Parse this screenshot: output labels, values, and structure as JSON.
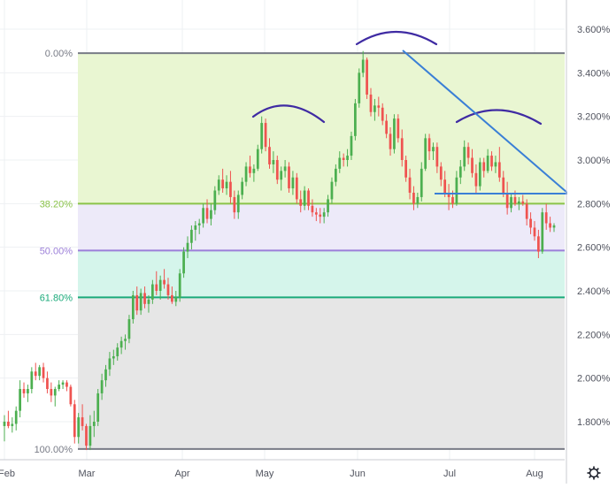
{
  "chart_data": {
    "type": "candlestick",
    "x_axis": {
      "type": "time",
      "tick_labels": [
        "Feb",
        "Mar",
        "Apr",
        "May",
        "Jun",
        "Jul",
        "Aug"
      ]
    },
    "y_axis": {
      "unit": "%",
      "range": [
        1.6,
        3.7
      ],
      "position": "right",
      "tick_labels": [
        "3.600%",
        "3.400%",
        "3.200%",
        "3.000%",
        "2.800%",
        "2.600%",
        "2.400%",
        "2.200%",
        "2.000%",
        "1.800%"
      ]
    },
    "grid": true,
    "fibonacci_retracement": {
      "levels": [
        {
          "label": "0.00%",
          "value": 3.49,
          "line_color": "#787b86",
          "label_color": "#787b86"
        },
        {
          "label": "38.20%",
          "value": 2.8,
          "line_color": "#8bc34a",
          "label_color": "#8bc34a"
        },
        {
          "label": "50.00%",
          "value": 2.585,
          "line_color": "#9c7fd9",
          "label_color": "#9c7fd9"
        },
        {
          "label": "61.80%",
          "value": 2.37,
          "line_color": "#1aaa7a",
          "label_color": "#1aaa7a"
        },
        {
          "label": "100.00%",
          "value": 1.675,
          "line_color": "#787b86",
          "label_color": "#787b86"
        }
      ],
      "zone_colors": [
        "#e8f5d0",
        "#ece9f9",
        "#d3f4ea",
        "#e5e5e5"
      ]
    },
    "candles": [
      {
        "t": "Feb 2",
        "o": 1.78,
        "h": 1.83,
        "l": 1.71,
        "c": 1.8
      },
      {
        "t": "Feb 3",
        "o": 1.8,
        "h": 1.85,
        "l": 1.77,
        "c": 1.78
      },
      {
        "t": "Feb 4",
        "o": 1.78,
        "h": 1.82,
        "l": 1.75,
        "c": 1.79
      },
      {
        "t": "Feb 5",
        "o": 1.79,
        "h": 1.87,
        "l": 1.76,
        "c": 1.85
      },
      {
        "t": "Feb 6",
        "o": 1.85,
        "h": 1.99,
        "l": 1.82,
        "c": 1.95
      },
      {
        "t": "Feb 7",
        "o": 1.95,
        "h": 1.98,
        "l": 1.91,
        "c": 1.93
      },
      {
        "t": "Feb 8",
        "o": 1.93,
        "h": 1.97,
        "l": 1.89,
        "c": 1.95
      },
      {
        "t": "Feb 9",
        "o": 1.95,
        "h": 2.05,
        "l": 1.93,
        "c": 2.03
      },
      {
        "t": "Feb 10",
        "o": 2.03,
        "h": 2.07,
        "l": 1.99,
        "c": 2.01
      },
      {
        "t": "Feb 11",
        "o": 2.01,
        "h": 2.06,
        "l": 1.99,
        "c": 2.05
      },
      {
        "t": "Feb 12",
        "o": 2.05,
        "h": 2.07,
        "l": 1.98,
        "c": 2.0
      },
      {
        "t": "Feb 13",
        "o": 2.0,
        "h": 2.03,
        "l": 1.93,
        "c": 1.95
      },
      {
        "t": "Feb 14",
        "o": 1.95,
        "h": 1.98,
        "l": 1.89,
        "c": 1.92
      },
      {
        "t": "Feb 15",
        "o": 1.92,
        "h": 1.96,
        "l": 1.87,
        "c": 1.95
      },
      {
        "t": "Feb 16",
        "o": 1.95,
        "h": 1.99,
        "l": 1.94,
        "c": 1.97
      },
      {
        "t": "Feb 17",
        "o": 1.97,
        "h": 1.99,
        "l": 1.95,
        "c": 1.98
      },
      {
        "t": "Feb 18",
        "o": 1.98,
        "h": 1.99,
        "l": 1.94,
        "c": 1.96
      },
      {
        "t": "Feb 19",
        "o": 1.96,
        "h": 1.97,
        "l": 1.87,
        "c": 1.88
      },
      {
        "t": "Feb 20",
        "o": 1.88,
        "h": 1.9,
        "l": 1.7,
        "c": 1.73
      },
      {
        "t": "Feb 21",
        "o": 1.73,
        "h": 1.84,
        "l": 1.7,
        "c": 1.82
      },
      {
        "t": "Feb 22",
        "o": 1.82,
        "h": 1.88,
        "l": 1.76,
        "c": 1.78
      },
      {
        "t": "Feb 23",
        "o": 1.78,
        "h": 1.79,
        "l": 1.67,
        "c": 1.69
      },
      {
        "t": "Feb 24",
        "o": 1.69,
        "h": 1.83,
        "l": 1.67,
        "c": 1.78
      },
      {
        "t": "Feb 25",
        "o": 1.78,
        "h": 1.85,
        "l": 1.73,
        "c": 1.8
      },
      {
        "t": "Feb 26",
        "o": 1.8,
        "h": 1.95,
        "l": 1.78,
        "c": 1.93
      },
      {
        "t": "Feb 27",
        "o": 1.93,
        "h": 2.02,
        "l": 1.9,
        "c": 1.99
      },
      {
        "t": "Feb 28",
        "o": 1.99,
        "h": 2.06,
        "l": 1.96,
        "c": 2.04
      },
      {
        "t": "Mar 1",
        "o": 2.04,
        "h": 2.12,
        "l": 2.01,
        "c": 2.09
      },
      {
        "t": "Mar 2",
        "o": 2.09,
        "h": 2.13,
        "l": 2.06,
        "c": 2.1
      },
      {
        "t": "Mar 3",
        "o": 2.1,
        "h": 2.16,
        "l": 2.08,
        "c": 2.14
      },
      {
        "t": "Mar 4",
        "o": 2.14,
        "h": 2.19,
        "l": 2.11,
        "c": 2.17
      },
      {
        "t": "Mar 5",
        "o": 2.17,
        "h": 2.2,
        "l": 2.13,
        "c": 2.18
      },
      {
        "t": "Mar 6",
        "o": 2.18,
        "h": 2.29,
        "l": 2.16,
        "c": 2.27
      },
      {
        "t": "Mar 7",
        "o": 2.27,
        "h": 2.4,
        "l": 2.25,
        "c": 2.38
      },
      {
        "t": "Mar 8",
        "o": 2.38,
        "h": 2.42,
        "l": 2.29,
        "c": 2.31
      },
      {
        "t": "Mar 9",
        "o": 2.31,
        "h": 2.41,
        "l": 2.29,
        "c": 2.39
      },
      {
        "t": "Mar 10",
        "o": 2.39,
        "h": 2.42,
        "l": 2.32,
        "c": 2.34
      },
      {
        "t": "Mar 11",
        "o": 2.34,
        "h": 2.38,
        "l": 2.3,
        "c": 2.36
      },
      {
        "t": "Mar 12",
        "o": 2.36,
        "h": 2.45,
        "l": 2.34,
        "c": 2.43
      },
      {
        "t": "Mar 13",
        "o": 2.43,
        "h": 2.49,
        "l": 2.38,
        "c": 2.4
      },
      {
        "t": "Mar 14",
        "o": 2.4,
        "h": 2.47,
        "l": 2.36,
        "c": 2.45
      },
      {
        "t": "Mar 15",
        "o": 2.45,
        "h": 2.5,
        "l": 2.41,
        "c": 2.43
      },
      {
        "t": "Mar 16",
        "o": 2.43,
        "h": 2.46,
        "l": 2.36,
        "c": 2.38
      },
      {
        "t": "Mar 17",
        "o": 2.38,
        "h": 2.42,
        "l": 2.34,
        "c": 2.35
      },
      {
        "t": "Mar 18",
        "o": 2.35,
        "h": 2.4,
        "l": 2.33,
        "c": 2.37
      },
      {
        "t": "Mar 19",
        "o": 2.37,
        "h": 2.5,
        "l": 2.35,
        "c": 2.48
      },
      {
        "t": "Mar 20",
        "o": 2.48,
        "h": 2.6,
        "l": 2.46,
        "c": 2.58
      },
      {
        "t": "Mar 21",
        "o": 2.58,
        "h": 2.65,
        "l": 2.55,
        "c": 2.62
      },
      {
        "t": "Mar 22",
        "o": 2.62,
        "h": 2.7,
        "l": 2.59,
        "c": 2.68
      },
      {
        "t": "Mar 23",
        "o": 2.68,
        "h": 2.72,
        "l": 2.63,
        "c": 2.7
      },
      {
        "t": "Mar 24",
        "o": 2.7,
        "h": 2.73,
        "l": 2.66,
        "c": 2.71
      },
      {
        "t": "Mar 25",
        "o": 2.71,
        "h": 2.8,
        "l": 2.69,
        "c": 2.78
      },
      {
        "t": "Mar 26",
        "o": 2.78,
        "h": 2.82,
        "l": 2.71,
        "c": 2.73
      },
      {
        "t": "Mar 27",
        "o": 2.73,
        "h": 2.8,
        "l": 2.7,
        "c": 2.77
      },
      {
        "t": "Mar 28",
        "o": 2.77,
        "h": 2.88,
        "l": 2.75,
        "c": 2.86
      },
      {
        "t": "Mar 29",
        "o": 2.86,
        "h": 2.93,
        "l": 2.84,
        "c": 2.91
      },
      {
        "t": "Mar 30",
        "o": 2.91,
        "h": 2.96,
        "l": 2.85,
        "c": 2.87
      },
      {
        "t": "Mar 31",
        "o": 2.87,
        "h": 2.93,
        "l": 2.84,
        "c": 2.9
      },
      {
        "t": "Apr 1",
        "o": 2.9,
        "h": 2.95,
        "l": 2.8,
        "c": 2.83
      },
      {
        "t": "Apr 2",
        "o": 2.83,
        "h": 2.86,
        "l": 2.73,
        "c": 2.76
      },
      {
        "t": "Apr 3",
        "o": 2.76,
        "h": 2.86,
        "l": 2.73,
        "c": 2.84
      },
      {
        "t": "Apr 4",
        "o": 2.84,
        "h": 2.92,
        "l": 2.82,
        "c": 2.9
      },
      {
        "t": "Apr 5",
        "o": 2.9,
        "h": 2.99,
        "l": 2.88,
        "c": 2.97
      },
      {
        "t": "Apr 6",
        "o": 2.97,
        "h": 3.02,
        "l": 2.92,
        "c": 2.94
      },
      {
        "t": "Apr 7",
        "o": 2.94,
        "h": 2.98,
        "l": 2.9,
        "c": 2.96
      },
      {
        "t": "Apr 8",
        "o": 2.96,
        "h": 3.07,
        "l": 2.95,
        "c": 3.05
      },
      {
        "t": "Apr 9",
        "o": 3.05,
        "h": 3.2,
        "l": 3.03,
        "c": 3.17
      },
      {
        "t": "Apr 10",
        "o": 3.17,
        "h": 3.19,
        "l": 3.04,
        "c": 3.06
      },
      {
        "t": "Apr 11",
        "o": 3.06,
        "h": 3.1,
        "l": 2.96,
        "c": 2.98
      },
      {
        "t": "Apr 12",
        "o": 2.98,
        "h": 3.04,
        "l": 2.94,
        "c": 3.0
      },
      {
        "t": "Apr 13",
        "o": 3.0,
        "h": 3.02,
        "l": 2.89,
        "c": 2.91
      },
      {
        "t": "Apr 14",
        "o": 2.91,
        "h": 2.97,
        "l": 2.86,
        "c": 2.95
      },
      {
        "t": "Apr 15",
        "o": 2.95,
        "h": 3.0,
        "l": 2.92,
        "c": 2.97
      },
      {
        "t": "Apr 16",
        "o": 2.97,
        "h": 2.99,
        "l": 2.85,
        "c": 2.87
      },
      {
        "t": "Apr 17",
        "o": 2.87,
        "h": 2.95,
        "l": 2.84,
        "c": 2.92
      },
      {
        "t": "Apr 18",
        "o": 2.92,
        "h": 2.94,
        "l": 2.8,
        "c": 2.82
      },
      {
        "t": "Apr 19",
        "o": 2.82,
        "h": 2.86,
        "l": 2.76,
        "c": 2.79
      },
      {
        "t": "Apr 20",
        "o": 2.79,
        "h": 2.88,
        "l": 2.77,
        "c": 2.86
      },
      {
        "t": "Apr 21",
        "o": 2.86,
        "h": 2.87,
        "l": 2.77,
        "c": 2.79
      },
      {
        "t": "Apr 22",
        "o": 2.79,
        "h": 2.82,
        "l": 2.74,
        "c": 2.76
      },
      {
        "t": "Apr 23",
        "o": 2.76,
        "h": 2.78,
        "l": 2.72,
        "c": 2.75
      },
      {
        "t": "Apr 24",
        "o": 2.75,
        "h": 2.78,
        "l": 2.71,
        "c": 2.74
      },
      {
        "t": "Apr 25",
        "o": 2.74,
        "h": 2.78,
        "l": 2.71,
        "c": 2.76
      },
      {
        "t": "Apr 26",
        "o": 2.76,
        "h": 2.84,
        "l": 2.74,
        "c": 2.82
      },
      {
        "t": "Apr 27",
        "o": 2.82,
        "h": 2.92,
        "l": 2.8,
        "c": 2.9
      },
      {
        "t": "Apr 28",
        "o": 2.9,
        "h": 2.98,
        "l": 2.88,
        "c": 2.96
      },
      {
        "t": "Apr 29",
        "o": 2.96,
        "h": 3.04,
        "l": 2.94,
        "c": 3.01
      },
      {
        "t": "Apr 30",
        "o": 3.01,
        "h": 3.03,
        "l": 2.97,
        "c": 3.0
      },
      {
        "t": "May 1",
        "o": 3.0,
        "h": 3.05,
        "l": 2.97,
        "c": 3.02
      },
      {
        "t": "May 2",
        "o": 3.02,
        "h": 3.13,
        "l": 3.0,
        "c": 3.11
      },
      {
        "t": "May 3",
        "o": 3.11,
        "h": 3.28,
        "l": 3.09,
        "c": 3.26
      },
      {
        "t": "May 4",
        "o": 3.26,
        "h": 3.42,
        "l": 3.24,
        "c": 3.4
      },
      {
        "t": "May 5",
        "o": 3.4,
        "h": 3.5,
        "l": 3.38,
        "c": 3.46
      },
      {
        "t": "May 6",
        "o": 3.46,
        "h": 3.47,
        "l": 3.28,
        "c": 3.3
      },
      {
        "t": "May 7",
        "o": 3.3,
        "h": 3.33,
        "l": 3.2,
        "c": 3.22
      },
      {
        "t": "May 8",
        "o": 3.22,
        "h": 3.28,
        "l": 3.18,
        "c": 3.25
      },
      {
        "t": "May 9",
        "o": 3.25,
        "h": 3.29,
        "l": 3.2,
        "c": 3.24
      },
      {
        "t": "May 10",
        "o": 3.24,
        "h": 3.26,
        "l": 3.16,
        "c": 3.18
      },
      {
        "t": "May 11",
        "o": 3.18,
        "h": 3.21,
        "l": 3.1,
        "c": 3.12
      },
      {
        "t": "May 12",
        "o": 3.12,
        "h": 3.15,
        "l": 3.02,
        "c": 3.05
      },
      {
        "t": "May 13",
        "o": 3.05,
        "h": 3.21,
        "l": 3.03,
        "c": 3.19
      },
      {
        "t": "May 14",
        "o": 3.19,
        "h": 3.21,
        "l": 3.08,
        "c": 3.1
      },
      {
        "t": "May 15",
        "o": 3.1,
        "h": 3.14,
        "l": 2.97,
        "c": 3.0
      },
      {
        "t": "May 16",
        "o": 3.0,
        "h": 3.02,
        "l": 2.9,
        "c": 2.92
      },
      {
        "t": "May 17",
        "o": 2.92,
        "h": 2.96,
        "l": 2.82,
        "c": 2.85
      },
      {
        "t": "May 18",
        "o": 2.85,
        "h": 2.88,
        "l": 2.77,
        "c": 2.8
      },
      {
        "t": "May 19",
        "o": 2.8,
        "h": 2.85,
        "l": 2.78,
        "c": 2.83
      },
      {
        "t": "May 20",
        "o": 2.83,
        "h": 2.99,
        "l": 2.81,
        "c": 2.96
      },
      {
        "t": "May 21",
        "o": 2.96,
        "h": 3.12,
        "l": 2.95,
        "c": 3.1
      },
      {
        "t": "May 22",
        "o": 3.1,
        "h": 3.12,
        "l": 3.0,
        "c": 3.04
      },
      {
        "t": "May 23",
        "o": 3.04,
        "h": 3.08,
        "l": 3.0,
        "c": 3.06
      },
      {
        "t": "May 24",
        "o": 3.06,
        "h": 3.08,
        "l": 2.94,
        "c": 2.97
      },
      {
        "t": "May 25",
        "o": 2.97,
        "h": 2.99,
        "l": 2.88,
        "c": 2.91
      },
      {
        "t": "May 26",
        "o": 2.91,
        "h": 2.95,
        "l": 2.83,
        "c": 2.85
      },
      {
        "t": "May 27",
        "o": 2.85,
        "h": 2.89,
        "l": 2.77,
        "c": 2.83
      },
      {
        "t": "May 28",
        "o": 2.83,
        "h": 2.86,
        "l": 2.78,
        "c": 2.8
      },
      {
        "t": "May 29",
        "o": 2.8,
        "h": 2.95,
        "l": 2.79,
        "c": 2.92
      },
      {
        "t": "May 30",
        "o": 2.92,
        "h": 3.0,
        "l": 2.89,
        "c": 2.97
      },
      {
        "t": "May 31",
        "o": 2.97,
        "h": 3.09,
        "l": 2.95,
        "c": 3.06
      },
      {
        "t": "Jun 1",
        "o": 3.06,
        "h": 3.08,
        "l": 2.98,
        "c": 3.01
      },
      {
        "t": "Jun 2",
        "o": 3.01,
        "h": 3.05,
        "l": 2.92,
        "c": 2.94
      },
      {
        "t": "Jun 3",
        "o": 2.94,
        "h": 2.98,
        "l": 2.85,
        "c": 2.88
      },
      {
        "t": "Jun 4",
        "o": 2.88,
        "h": 3.01,
        "l": 2.86,
        "c": 2.99
      },
      {
        "t": "Jun 5",
        "o": 2.99,
        "h": 3.01,
        "l": 2.92,
        "c": 2.95
      },
      {
        "t": "Jun 6",
        "o": 2.95,
        "h": 3.05,
        "l": 2.94,
        "c": 3.02
      },
      {
        "t": "Jun 7",
        "o": 3.02,
        "h": 3.04,
        "l": 2.95,
        "c": 2.97
      },
      {
        "t": "Jun 8",
        "o": 2.97,
        "h": 3.02,
        "l": 2.94,
        "c": 2.99
      },
      {
        "t": "Jun 9",
        "o": 2.99,
        "h": 3.06,
        "l": 2.9,
        "c": 2.92
      },
      {
        "t": "Jun 10",
        "o": 2.92,
        "h": 2.95,
        "l": 2.83,
        "c": 2.85
      },
      {
        "t": "Jun 11",
        "o": 2.85,
        "h": 2.9,
        "l": 2.75,
        "c": 2.78
      },
      {
        "t": "Jun 12",
        "o": 2.78,
        "h": 2.85,
        "l": 2.76,
        "c": 2.83
      },
      {
        "t": "Jun 13",
        "o": 2.83,
        "h": 2.86,
        "l": 2.79,
        "c": 2.8
      },
      {
        "t": "Jun 14",
        "o": 2.8,
        "h": 2.83,
        "l": 2.77,
        "c": 2.81
      },
      {
        "t": "Jun 15",
        "o": 2.81,
        "h": 2.84,
        "l": 2.79,
        "c": 2.8
      },
      {
        "t": "Jun 16",
        "o": 2.8,
        "h": 2.82,
        "l": 2.7,
        "c": 2.73
      },
      {
        "t": "Jun 17",
        "o": 2.73,
        "h": 2.76,
        "l": 2.66,
        "c": 2.69
      },
      {
        "t": "Jun 18",
        "o": 2.69,
        "h": 2.72,
        "l": 2.63,
        "c": 2.65
      },
      {
        "t": "Jun 19",
        "o": 2.65,
        "h": 2.68,
        "l": 2.55,
        "c": 2.58
      },
      {
        "t": "Jun 20",
        "o": 2.58,
        "h": 2.78,
        "l": 2.57,
        "c": 2.76
      },
      {
        "t": "Jun 21",
        "o": 2.76,
        "h": 2.8,
        "l": 2.68,
        "c": 2.71
      },
      {
        "t": "Jun 22",
        "o": 2.71,
        "h": 2.74,
        "l": 2.67,
        "c": 2.69
      },
      {
        "t": "Jun 23",
        "o": 2.69,
        "h": 2.71,
        "l": 2.67,
        "c": 2.7
      }
    ],
    "annotations": [
      {
        "type": "arc",
        "label": "",
        "color": "#3f2ba3"
      },
      {
        "type": "arc",
        "label": "",
        "color": "#3f2ba3"
      },
      {
        "type": "arc",
        "label": "",
        "color": "#3f2ba3"
      },
      {
        "type": "trendline",
        "label": "",
        "color": "#3a7fd6"
      },
      {
        "type": "horizontal-line",
        "label": "",
        "color": "#3a7fd6"
      }
    ]
  },
  "colors": {
    "up": "#26a69a",
    "up_body": "#4caf50",
    "down": "#ef5350",
    "grid": "#eef0f3",
    "axis_text": "#50535e",
    "border": "#c8cbd2"
  },
  "toolbar": {
    "settings_icon": "gear-icon"
  }
}
